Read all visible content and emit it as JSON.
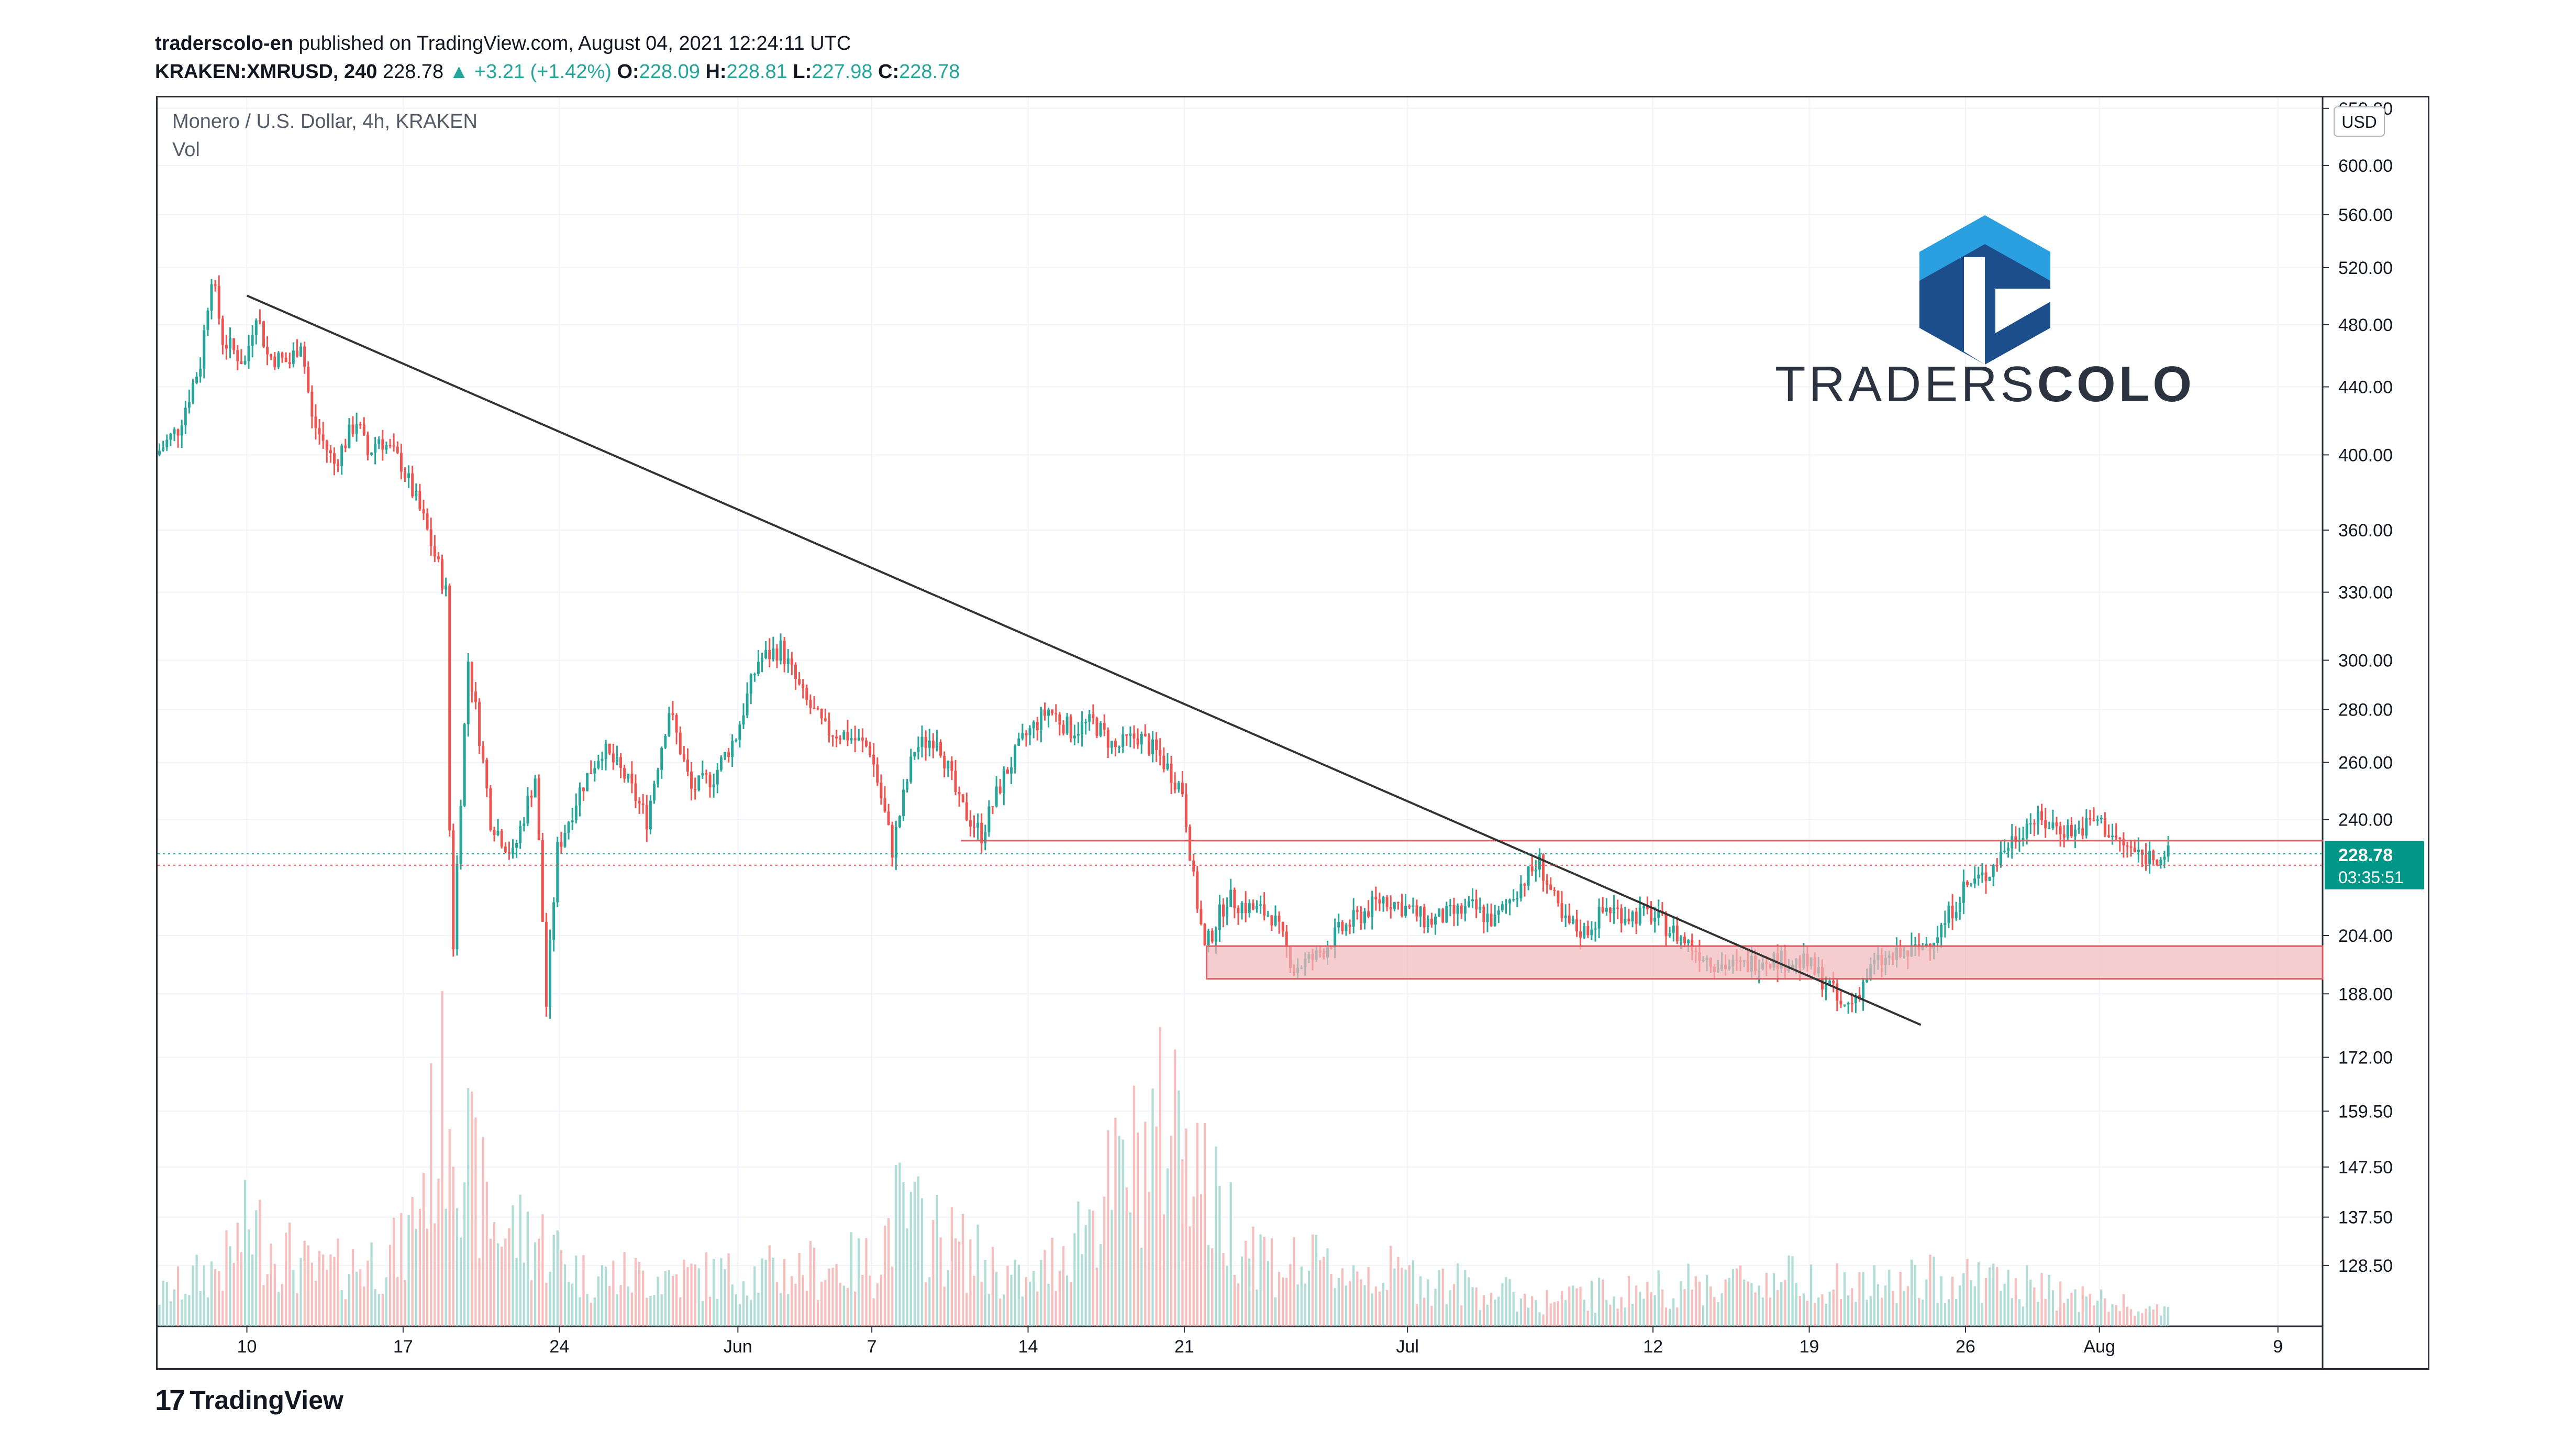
{
  "header": {
    "author": "traderscolo-en",
    "published_on": " published on TradingView.com, August 04, 2021 12:24:11 UTC",
    "symbol": "KRAKEN:XMRUSD, 240",
    "last": "228.78",
    "change": "▲ +3.21 (+1.42%)",
    "o_label": "O:",
    "o": "228.09",
    "h_label": "H:",
    "h": "228.81",
    "l_label": "L:",
    "l": "227.98",
    "c_label": "C:",
    "c": "228.78"
  },
  "footer": {
    "brand": "TradingView",
    "mark": "17"
  },
  "watermark": {
    "text_light": "TRADERS",
    "text_bold": "COLO"
  },
  "colors": {
    "up": "#26a69a",
    "down": "#ef5350",
    "price_badge": "#009688",
    "zone_fill": "#f2b8bb",
    "zone_stroke": "#e05a62",
    "trend": "#333333",
    "logo_blue_dark": "#1c4e8c",
    "logo_blue_light": "#2aa0e0"
  },
  "chart_data": {
    "type": "candlestick",
    "title": "Monero / U.S. Dollar, 4h, KRAKEN",
    "indicator": "Vol",
    "currency": "USD",
    "y_scale": "log",
    "ylim": [
      118,
      660
    ],
    "y_ticks": [
      "128.50",
      "137.50",
      "147.50",
      "159.50",
      "172.00",
      "188.00",
      "204.00",
      "240.00",
      "260.00",
      "280.00",
      "300.00",
      "330.00",
      "360.00",
      "400.00",
      "440.00",
      "480.00",
      "520.00",
      "560.00",
      "600.00",
      "650.00"
    ],
    "x_range": [
      "2021-05-06",
      "2021-08-11"
    ],
    "x_ticks": [
      {
        "date": "2021-05-10",
        "label": "10"
      },
      {
        "date": "2021-05-17",
        "label": "17"
      },
      {
        "date": "2021-05-24",
        "label": "24"
      },
      {
        "date": "2021-06-01",
        "label": "Jun"
      },
      {
        "date": "2021-06-07",
        "label": "7"
      },
      {
        "date": "2021-06-14",
        "label": "14"
      },
      {
        "date": "2021-06-21",
        "label": "21"
      },
      {
        "date": "2021-07-01",
        "label": "Jul"
      },
      {
        "date": "2021-07-12",
        "label": "12"
      },
      {
        "date": "2021-07-19",
        "label": "19"
      },
      {
        "date": "2021-07-26",
        "label": "26"
      },
      {
        "date": "2021-08-01",
        "label": "Aug"
      },
      {
        "date": "2021-08-09",
        "label": "9"
      }
    ],
    "price_path": [
      [
        "2021-05-06",
        400
      ],
      [
        "2021-05-07",
        415
      ],
      [
        "2021-05-08",
        455
      ],
      [
        "2021-05-08T12",
        515
      ],
      [
        "2021-05-09",
        470
      ],
      [
        "2021-05-10",
        455
      ],
      [
        "2021-05-10T12",
        490
      ],
      [
        "2021-05-11",
        460
      ],
      [
        "2021-05-12",
        455
      ],
      [
        "2021-05-12T12",
        470
      ],
      [
        "2021-05-13",
        420
      ],
      [
        "2021-05-14",
        395
      ],
      [
        "2021-05-15",
        420
      ],
      [
        "2021-05-15T12",
        400
      ],
      [
        "2021-05-16",
        410
      ],
      [
        "2021-05-17",
        395
      ],
      [
        "2021-05-18",
        365
      ],
      [
        "2021-05-19",
        330
      ],
      [
        "2021-05-19T06",
        190
      ],
      [
        "2021-05-19T18",
        260
      ],
      [
        "2021-05-20",
        300
      ],
      [
        "2021-05-21",
        240
      ],
      [
        "2021-05-22",
        228
      ],
      [
        "2021-05-23",
        255
      ],
      [
        "2021-05-23T12",
        185
      ],
      [
        "2021-05-24",
        230
      ],
      [
        "2021-05-25",
        250
      ],
      [
        "2021-05-26",
        265
      ],
      [
        "2021-05-27",
        255
      ],
      [
        "2021-05-28",
        240
      ],
      [
        "2021-05-29",
        280
      ],
      [
        "2021-05-30",
        250
      ],
      [
        "2021-05-31",
        255
      ],
      [
        "2021-06-01",
        270
      ],
      [
        "2021-06-02",
        300
      ],
      [
        "2021-06-03",
        305
      ],
      [
        "2021-06-04",
        285
      ],
      [
        "2021-06-05",
        272
      ],
      [
        "2021-06-06",
        270
      ],
      [
        "2021-06-07",
        265
      ],
      [
        "2021-06-08",
        230
      ],
      [
        "2021-06-09",
        265
      ],
      [
        "2021-06-10",
        270
      ],
      [
        "2021-06-11",
        245
      ],
      [
        "2021-06-12",
        235
      ],
      [
        "2021-06-13",
        255
      ],
      [
        "2021-06-14",
        270
      ],
      [
        "2021-06-15",
        280
      ],
      [
        "2021-06-16",
        272
      ],
      [
        "2021-06-17",
        275
      ],
      [
        "2021-06-18",
        265
      ],
      [
        "2021-06-19",
        270
      ],
      [
        "2021-06-20",
        262
      ],
      [
        "2021-06-21",
        250
      ],
      [
        "2021-06-21T12",
        220
      ],
      [
        "2021-06-22",
        200
      ],
      [
        "2021-06-23",
        215
      ],
      [
        "2021-06-24",
        212
      ],
      [
        "2021-06-25",
        210
      ],
      [
        "2021-06-26",
        195
      ],
      [
        "2021-06-27",
        198
      ],
      [
        "2021-06-28",
        205
      ],
      [
        "2021-06-29",
        210
      ],
      [
        "2021-06-30",
        215
      ],
      [
        "2021-07-01",
        212
      ],
      [
        "2021-07-02",
        208
      ],
      [
        "2021-07-03",
        210
      ],
      [
        "2021-07-04",
        212
      ],
      [
        "2021-07-05",
        208
      ],
      [
        "2021-07-06",
        218
      ],
      [
        "2021-07-07",
        226
      ],
      [
        "2021-07-08",
        208
      ],
      [
        "2021-07-09",
        205
      ],
      [
        "2021-07-10",
        212
      ],
      [
        "2021-07-11",
        210
      ],
      [
        "2021-07-12",
        210
      ],
      [
        "2021-07-13",
        205
      ],
      [
        "2021-07-14",
        200
      ],
      [
        "2021-07-15",
        196
      ],
      [
        "2021-07-16",
        195
      ],
      [
        "2021-07-17",
        198
      ],
      [
        "2021-07-18",
        197
      ],
      [
        "2021-07-19",
        196
      ],
      [
        "2021-07-20",
        190
      ],
      [
        "2021-07-20T12",
        184
      ],
      [
        "2021-07-21",
        186
      ],
      [
        "2021-07-22",
        196
      ],
      [
        "2021-07-23",
        198
      ],
      [
        "2021-07-24",
        200
      ],
      [
        "2021-07-25",
        206
      ],
      [
        "2021-07-26",
        218
      ],
      [
        "2021-07-27",
        222
      ],
      [
        "2021-07-28",
        232
      ],
      [
        "2021-07-29",
        240
      ],
      [
        "2021-07-30",
        238
      ],
      [
        "2021-07-31",
        236
      ],
      [
        "2021-08-01",
        240
      ],
      [
        "2021-08-02",
        232
      ],
      [
        "2021-08-03",
        228
      ],
      [
        "2021-08-04",
        228.78
      ]
    ],
    "volume_path": [
      [
        "2021-05-06",
        0.12
      ],
      [
        "2021-05-09",
        0.25
      ],
      [
        "2021-05-10",
        0.4
      ],
      [
        "2021-05-13",
        0.2
      ],
      [
        "2021-05-17",
        0.3
      ],
      [
        "2021-05-19",
        1.0
      ],
      [
        "2021-05-20",
        0.6
      ],
      [
        "2021-05-21",
        0.4
      ],
      [
        "2021-05-23",
        0.35
      ],
      [
        "2021-05-25",
        0.2
      ],
      [
        "2021-06-01",
        0.2
      ],
      [
        "2021-06-07",
        0.25
      ],
      [
        "2021-06-08",
        0.45
      ],
      [
        "2021-06-14",
        0.15
      ],
      [
        "2021-06-21",
        0.9
      ],
      [
        "2021-06-22",
        0.5
      ],
      [
        "2021-06-25",
        0.25
      ],
      [
        "2021-07-01",
        0.2
      ],
      [
        "2021-07-07",
        0.1
      ],
      [
        "2021-07-12",
        0.15
      ],
      [
        "2021-07-19",
        0.2
      ],
      [
        "2021-07-21",
        0.15
      ],
      [
        "2021-07-26",
        0.2
      ],
      [
        "2021-08-04",
        0.05
      ]
    ],
    "trendline": {
      "start": [
        "2021-05-10",
        500
      ],
      "end": [
        "2021-07-24",
        180
      ]
    },
    "support_zone": {
      "from": "2021-06-22",
      "to": "2021-08-11",
      "low": 192,
      "high": 201
    },
    "resistance_line": {
      "from": "2021-06-11",
      "to": "2021-08-11",
      "value": 233
    },
    "price_label": {
      "value": "228.78",
      "countdown": "03:35:51"
    }
  }
}
